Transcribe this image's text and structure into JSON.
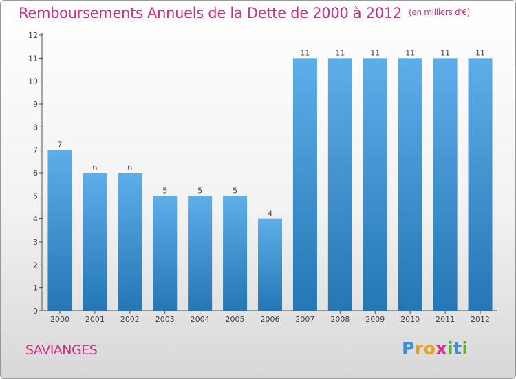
{
  "title": "Remboursements Annuels de la Dette de 2000 à 2012",
  "unit": "(en milliers d'€)",
  "commune": "SAVIANGES",
  "logo": {
    "letters": [
      "P",
      "r",
      "o",
      "x",
      "i",
      "t",
      "i"
    ],
    "colors": [
      "#3a8fd8",
      "#e8a21b",
      "#e8a21b",
      "#d52b8a",
      "#5bb031",
      "#3a8fd8",
      "#5bb031"
    ]
  },
  "colors": {
    "bar": "#3a8fd8",
    "bar_light": "#5daee9",
    "bar_dark": "#2476b5",
    "title": "#d52b8a"
  },
  "chart_data": {
    "type": "bar",
    "categories": [
      "2000",
      "2001",
      "2002",
      "2003",
      "2004",
      "2005",
      "2006",
      "2007",
      "2008",
      "2009",
      "2010",
      "2011",
      "2012"
    ],
    "values": [
      7,
      6,
      6,
      5,
      5,
      5,
      4,
      11,
      11,
      11,
      11,
      11,
      11
    ],
    "data_labels": [
      "7",
      "6",
      "6",
      "5",
      "5",
      "5",
      "4",
      "11",
      "11",
      "11",
      "11",
      "11",
      "11"
    ],
    "y_ticks": [
      "0",
      "1",
      "2",
      "3",
      "4",
      "5",
      "6",
      "7",
      "8",
      "9",
      "10",
      "11",
      "12"
    ],
    "ylim": [
      0,
      12
    ],
    "grid": false
  }
}
